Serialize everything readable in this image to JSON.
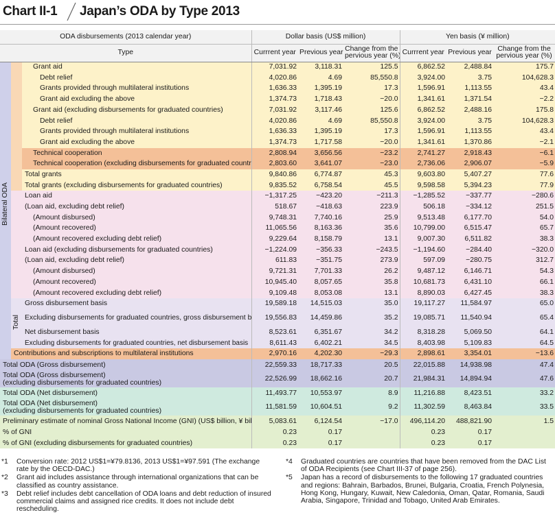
{
  "header": {
    "chart_label": "Chart II-1",
    "title": "Japan’s ODA by Type 2013"
  },
  "table_header": {
    "disbursements": "ODA disbursements (2013 calendar year)",
    "dollar_basis": "Dollar basis (US$ million)",
    "yen_basis": "Yen basis (¥ million)",
    "type": "Type",
    "current_year": "Currrent year",
    "previous_year": "Previous year",
    "change_line1": "Change from the",
    "change_line2": "pervious year (%)"
  },
  "side_labels": {
    "bilateral": "Bilateral ODA",
    "total": "Total"
  },
  "rows": [
    {
      "label": "Grant aid",
      "values": [
        "7,031.92",
        "3,118.31",
        "125.5",
        "6,862.52",
        "2,488.84",
        "175.7"
      ]
    },
    {
      "label": "Debt relief",
      "values": [
        "4,020.86",
        "4.69",
        "85,550.8",
        "3,924.00",
        "3.75",
        "104,628.3"
      ]
    },
    {
      "label": "Grants provided through multilateral institutions",
      "values": [
        "1,636.33",
        "1,395.19",
        "17.3",
        "1,596.91",
        "1,113.55",
        "43.4"
      ]
    },
    {
      "label": "Grant aid excluding the above",
      "values": [
        "1,374.73",
        "1,718.43",
        "−20.0",
        "1,341.61",
        "1,371.54",
        "−2.2"
      ]
    },
    {
      "label": "Grant aid (excluding disbursements for graduated countries)",
      "values": [
        "7,031.92",
        "3,117.46",
        "125.6",
        "6,862.52",
        "2,488.16",
        "175.8"
      ]
    },
    {
      "label": "Debt relief",
      "values": [
        "4,020.86",
        "4.69",
        "85,550.8",
        "3,924.00",
        "3.75",
        "104,628.3"
      ]
    },
    {
      "label": "Grants provided through multilateral institutions",
      "values": [
        "1,636.33",
        "1,395.19",
        "17.3",
        "1,596.91",
        "1,113.55",
        "43.4"
      ]
    },
    {
      "label": "Grant aid excluding the above",
      "values": [
        "1,374.73",
        "1,717.58",
        "−20.0",
        "1,341.61",
        "1,370.86",
        "−2.1"
      ]
    },
    {
      "label": "Technical cooperation",
      "values": [
        "2,808.94",
        "3,656.56",
        "−23.2",
        "2,741.27",
        "2,918.43",
        "−6.1"
      ]
    },
    {
      "label": "Technical cooperation (excluding disbursements for graduated countries)",
      "values": [
        "2,803.60",
        "3,641.07",
        "−23.0",
        "2,736.06",
        "2,906.07",
        "−5.9"
      ]
    },
    {
      "label": "Total grants",
      "values": [
        "9,840.86",
        "6,774.87",
        "45.3",
        "9,603.80",
        "5,407.27",
        "77.6"
      ]
    },
    {
      "label": "Total grants (excluding disbursements for graduated countries)",
      "values": [
        "9,835.52",
        "6,758.54",
        "45.5",
        "9,598.58",
        "5,394.23",
        "77.9"
      ]
    },
    {
      "label": "Loan aid",
      "values": [
        "−1,317.25",
        "−423.20",
        "−211.3",
        "−1,285.52",
        "−337.77",
        "−280.6"
      ]
    },
    {
      "label": "(Loan aid, excluding debt relief)",
      "values": [
        "518.67",
        "−418.63",
        "223.9",
        "506.18",
        "−334.12",
        "251.5"
      ]
    },
    {
      "label": "(Amount disbursed)",
      "values": [
        "9,748.31",
        "7,740.16",
        "25.9",
        "9,513.48",
        "6,177.70",
        "54.0"
      ]
    },
    {
      "label": "(Amount recovered)",
      "values": [
        "11,065.56",
        "8,163.36",
        "35.6",
        "10,799.00",
        "6,515.47",
        "65.7"
      ]
    },
    {
      "label": "(Amount recovered excluding debt relief)",
      "values": [
        "9,229.64",
        "8,158.79",
        "13.1",
        "9,007.30",
        "6,511.82",
        "38.3"
      ]
    },
    {
      "label": "Loan aid (excluding disbursements for graduated countries)",
      "values": [
        "−1,224.09",
        "−356.33",
        "−243.5",
        "−1,194.60",
        "−284.40",
        "−320.0"
      ]
    },
    {
      "label": "(Loan aid, excluding debt relief)",
      "values": [
        "611.83",
        "−351.75",
        "273.9",
        "597.09",
        "−280.75",
        "312.7"
      ]
    },
    {
      "label": "(Amount disbursed)",
      "values": [
        "9,721.31",
        "7,701.33",
        "26.2",
        "9,487.12",
        "6,146.71",
        "54.3"
      ]
    },
    {
      "label": "(Amount recovered)",
      "values": [
        "10,945.40",
        "8,057.65",
        "35.8",
        "10,681.73",
        "6,431.10",
        "66.1"
      ]
    },
    {
      "label": "(Amount recovered excluding debt relief)",
      "values": [
        "9,109.48",
        "8,053.08",
        "13.1",
        "8,890.03",
        "6,427.45",
        "38.3"
      ]
    },
    {
      "label": "Gross disbursement basis",
      "values": [
        "19,589.18",
        "14,515.03",
        "35.0",
        "19,117.27",
        "11,584.97",
        "65.0"
      ]
    },
    {
      "label": "Excluding disbursements for graduated countries, gross disbursement basis)",
      "values": [
        "19,556.83",
        "14,459.86",
        "35.2",
        "19,085.71",
        "11,540.94",
        "65.4"
      ]
    },
    {
      "label": "Net disbursement basis",
      "values": [
        "8,523.61",
        "6,351.67",
        "34.2",
        "8,318.28",
        "5,069.50",
        "64.1"
      ]
    },
    {
      "label": "Excluding disbursements for graduated countries, net disbursement basis",
      "values": [
        "8,611.43",
        "6,402.21",
        "34.5",
        "8,403.98",
        "5,109.83",
        "64.5"
      ]
    },
    {
      "label": "Contributions and subscriptions to multilateral institutions",
      "values": [
        "2,970.16",
        "4,202.30",
        "−29.3",
        "2,898.61",
        "3,354.01",
        "−13.6"
      ]
    },
    {
      "label": "Total ODA (Gross disbursement)",
      "values": [
        "22,559.33",
        "18,717.33",
        "20.5",
        "22,015.88",
        "14,938.98",
        "47.4"
      ]
    },
    {
      "label": "Total ODA (Gross disbursement)",
      "label2": "(excluding disbursements for graduated countries)",
      "values": [
        "22,526.99",
        "18,662.16",
        "20.7",
        "21,984.31",
        "14,894.94",
        "47.6"
      ]
    },
    {
      "label": "Total ODA (Net disbursement)",
      "values": [
        "11,493.77",
        "10,553.97",
        "8.9",
        "11,216.88",
        "8,423.51",
        "33.2"
      ]
    },
    {
      "label": "Total ODA (Net disbursement)",
      "label2": "(excluding disbursements for graduated countries)",
      "values": [
        "11,581.59",
        "10,604.51",
        "9.2",
        "11,302.59",
        "8,463.84",
        "33.5"
      ]
    },
    {
      "label": "Preliminary estimate of nominal Gross National Income (GNI) (US$ billion, ¥ billion)",
      "values": [
        "5,083.61",
        "6,124.54",
        "−17.0",
        "496,114.20",
        "488,821.90",
        "1.5"
      ]
    },
    {
      "label": "% of GNI",
      "values": [
        "0.23",
        "0.17",
        "",
        "0.23",
        "0.17",
        ""
      ]
    },
    {
      "label": "% of GNI (excluding disbursements for graduated countries)",
      "values": [
        "0.23",
        "0.17",
        "",
        "0.23",
        "0.17",
        ""
      ]
    }
  ],
  "notes": {
    "n1_mark": "*1",
    "n1": "Conversion rate: 2012 US$1=¥79.8136, 2013 US$1=¥97.591 (The exchange rate by the OECD-DAC.)",
    "n2_mark": "*2",
    "n2": "Grant aid includes assistance through international organizations that can be classified as country assistance.",
    "n3_mark": "*3",
    "n3": "Debt relief includes debt cancellation of ODA loans and debt reduction of insured commercial claims and assigned rice credits. It does not include debt rescheduling.",
    "n4_mark": "*4",
    "n4": "Graduated countries are countries that have been removed from the DAC List of ODA Recipients (see Chart III-37 of page 256).",
    "n5_mark": "*5",
    "n5": "Japan has a record of disbursements to the following 17 graduated countries and regions: Bahrain, Barbados, Brunei, Bulgaria, Croatia, French Polynesia, Hong Kong, Hungary, Kuwait, New Caledonia, Oman, Qatar, Romania, Saudi Arabia, Singapore, Trinidad and Tobago, United Arab Emirates."
  },
  "colors": {
    "grant": "#fdf2c9",
    "technical": "#f4c098",
    "loan": "#f6e1ec",
    "bilateral_side": "#cfd0ea",
    "total_oda": "#c9c9e3",
    "net_oda": "#cfeadf",
    "gni": "#e3efcf"
  }
}
